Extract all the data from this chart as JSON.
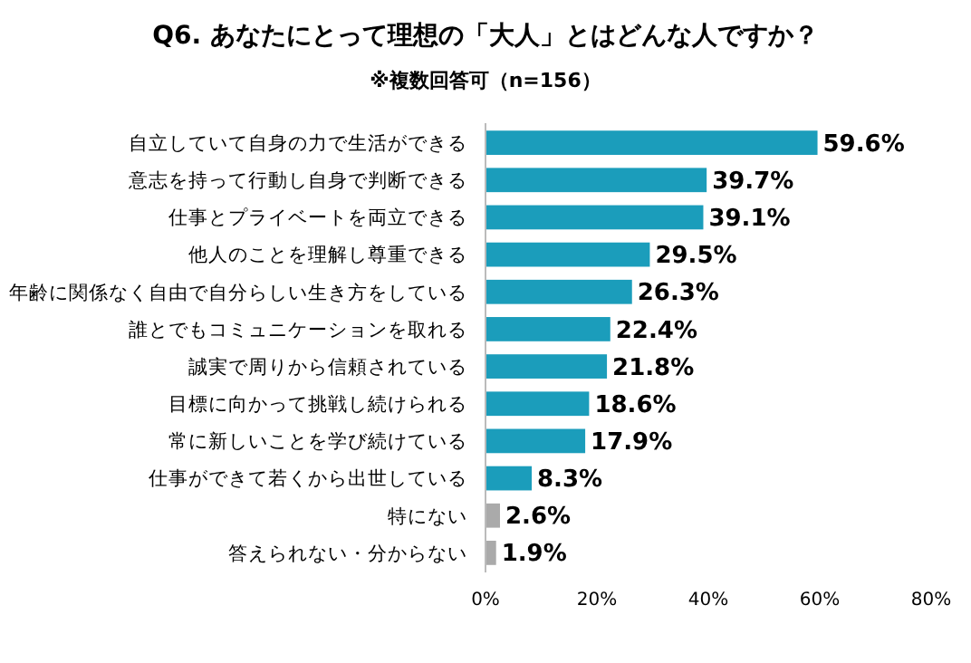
{
  "chart_data": {
    "type": "bar",
    "orientation": "horizontal",
    "title": "Q6. あなたにとって理想の「大人」とはどんな人ですか？",
    "subtitle": "※複数回答可（n=156）",
    "categories": [
      "自立していて自身の力で生活ができる",
      "意志を持って行動し自身で判断できる",
      "仕事とプライベートを両立できる",
      "他人のことを理解し尊重できる",
      "年齢に関係なく自由で自分らしい生き方をしている",
      "誰とでもコミュニケーションを取れる",
      "誠実で周りから信頼されている",
      "目標に向かって挑戦し続けられる",
      "常に新しいことを学び続けている",
      "仕事ができて若くから出世している",
      "特にない",
      "答えられない・分からない"
    ],
    "values": [
      59.6,
      39.7,
      39.1,
      29.5,
      26.3,
      22.4,
      21.8,
      18.6,
      17.9,
      8.3,
      2.6,
      1.9
    ],
    "colors": [
      "#1b9dbb",
      "#1b9dbb",
      "#1b9dbb",
      "#1b9dbb",
      "#1b9dbb",
      "#1b9dbb",
      "#1b9dbb",
      "#1b9dbb",
      "#1b9dbb",
      "#1b9dbb",
      "#aaaaaa",
      "#aaaaaa"
    ],
    "value_labels": [
      "59.6%",
      "39.7%",
      "39.1%",
      "29.5%",
      "26.3%",
      "22.4%",
      "21.8%",
      "18.6%",
      "17.9%",
      "8.3%",
      "2.6%",
      "1.9%"
    ],
    "xlim": [
      0,
      80
    ],
    "xticks": [
      {
        "value": 0,
        "label": "0%"
      },
      {
        "value": 20,
        "label": "20%"
      },
      {
        "value": 40,
        "label": "40%"
      },
      {
        "value": 60,
        "label": "60%"
      },
      {
        "value": 80,
        "label": "80%"
      }
    ]
  }
}
